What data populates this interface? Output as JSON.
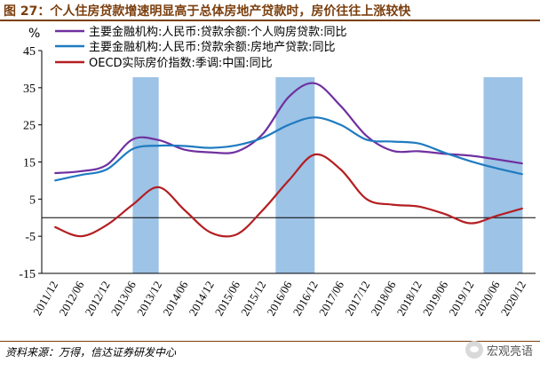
{
  "header": {
    "title": "图 27：个人住房贷款增速明显高于总体房地产贷款时，房价往往上涨较快",
    "unit": "%"
  },
  "footer": {
    "source": "资料来源：万得，信达证券研发中心",
    "watermark": "宏观亮语"
  },
  "chart_data": {
    "type": "line",
    "x": [
      "2011/12",
      "2012/06",
      "2012/12",
      "2013/06",
      "2013/12",
      "2014/06",
      "2014/12",
      "2015/06",
      "2015/12",
      "2016/06",
      "2016/12",
      "2017/06",
      "2017/12",
      "2018/06",
      "2018/12",
      "2019/06",
      "2019/12",
      "2020/06",
      "2020/12"
    ],
    "ylim": [
      -15,
      45
    ],
    "yticks": [
      -15,
      -5,
      5,
      15,
      25,
      35,
      45
    ],
    "grid": false,
    "legend_position": "top-left",
    "shaded_periods": [
      [
        "2013/06",
        "2013/12"
      ],
      [
        "2016/03",
        "2016/12"
      ],
      [
        "2020/03",
        "2020/12"
      ]
    ],
    "series": [
      {
        "name": "主要金融机构:人民币:贷款余额:个人购房贷款:同比",
        "color": "#7030a0",
        "values": [
          12.0,
          12.5,
          14.2,
          21.1,
          20.9,
          18.3,
          17.6,
          17.8,
          22.5,
          32.5,
          36.2,
          30.1,
          22.0,
          18.0,
          17.9,
          17.2,
          16.7,
          15.7,
          14.6
        ]
      },
      {
        "name": "主要金融机构:人民币:贷款余额:房地产贷款:同比",
        "color": "#1f7bc1",
        "values": [
          10.0,
          11.5,
          13.0,
          18.5,
          19.4,
          19.3,
          18.8,
          19.5,
          21.5,
          25.0,
          27.0,
          25.0,
          21.0,
          20.5,
          20.0,
          17.5,
          15.2,
          13.3,
          11.7
        ]
      },
      {
        "name": "OECD实际房价指数:季调:中国:同比",
        "color": "#b41e22",
        "values": [
          -2.5,
          -5.0,
          -2.0,
          3.5,
          8.2,
          2.0,
          -4.0,
          -4.5,
          2.0,
          10.0,
          17.0,
          13.0,
          5.0,
          3.5,
          3.0,
          1.0,
          -1.5,
          0.5,
          2.5
        ]
      }
    ]
  }
}
